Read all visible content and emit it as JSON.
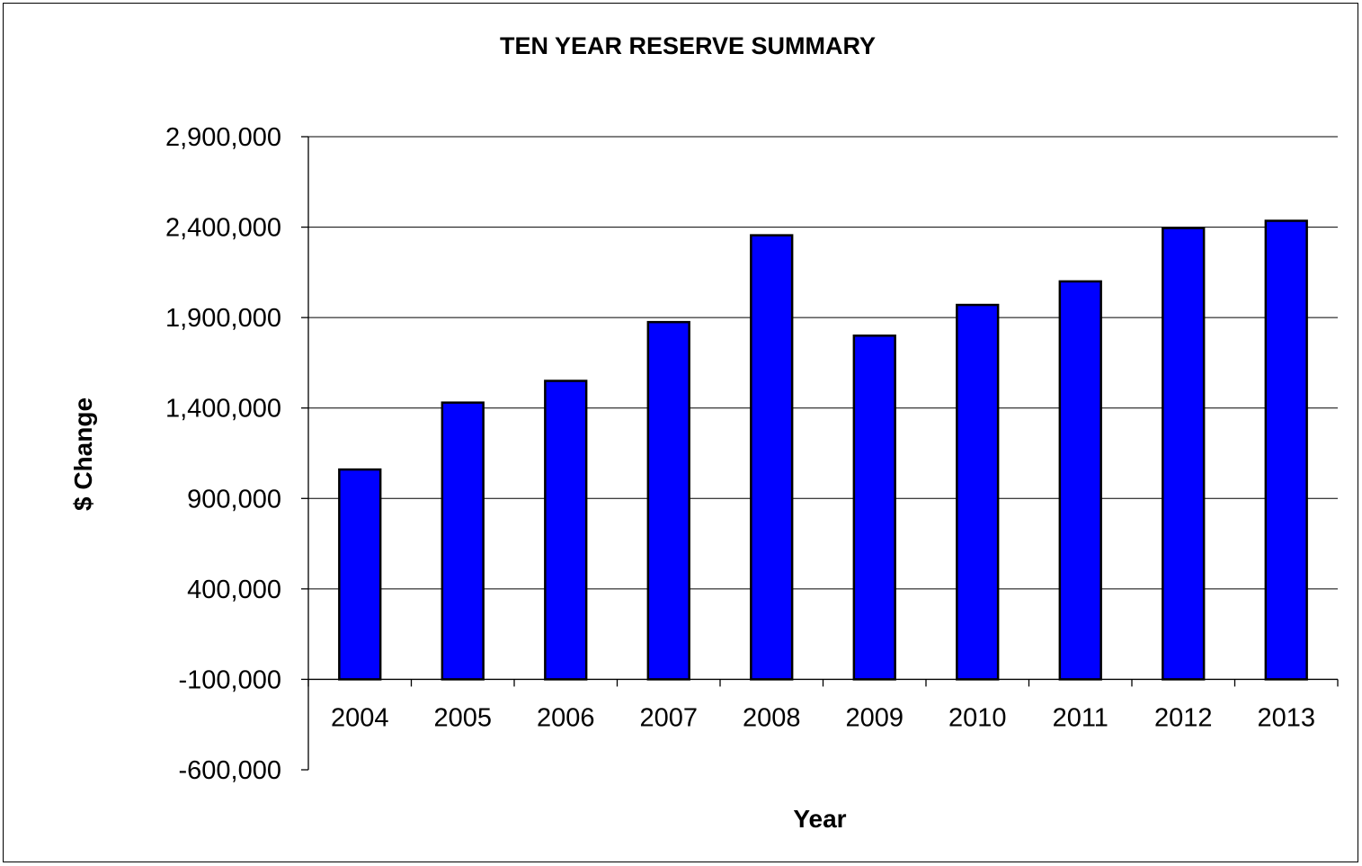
{
  "chart_data": {
    "type": "bar",
    "title": "TEN YEAR RESERVE SUMMARY",
    "xlabel": "Year",
    "ylabel": "$ Change",
    "categories": [
      "2004",
      "2005",
      "2006",
      "2007",
      "2008",
      "2009",
      "2010",
      "2011",
      "2012",
      "2013"
    ],
    "values": [
      1060000,
      1430000,
      1550000,
      1875000,
      2355000,
      1800000,
      1970000,
      2100000,
      2395000,
      2435000
    ],
    "ylim": [
      -600000,
      2900000
    ],
    "yticks": [
      2900000,
      2400000,
      1900000,
      1400000,
      900000,
      400000,
      -100000,
      -600000
    ],
    "ytick_labels": [
      "2,900,000",
      "2,400,000",
      "1,900,000",
      "1,400,000",
      "900,000",
      "400,000",
      "-100,000",
      "-600,000"
    ],
    "baseline": -100000,
    "grid": true,
    "legend": "none",
    "bar_color": "#0000FF"
  }
}
